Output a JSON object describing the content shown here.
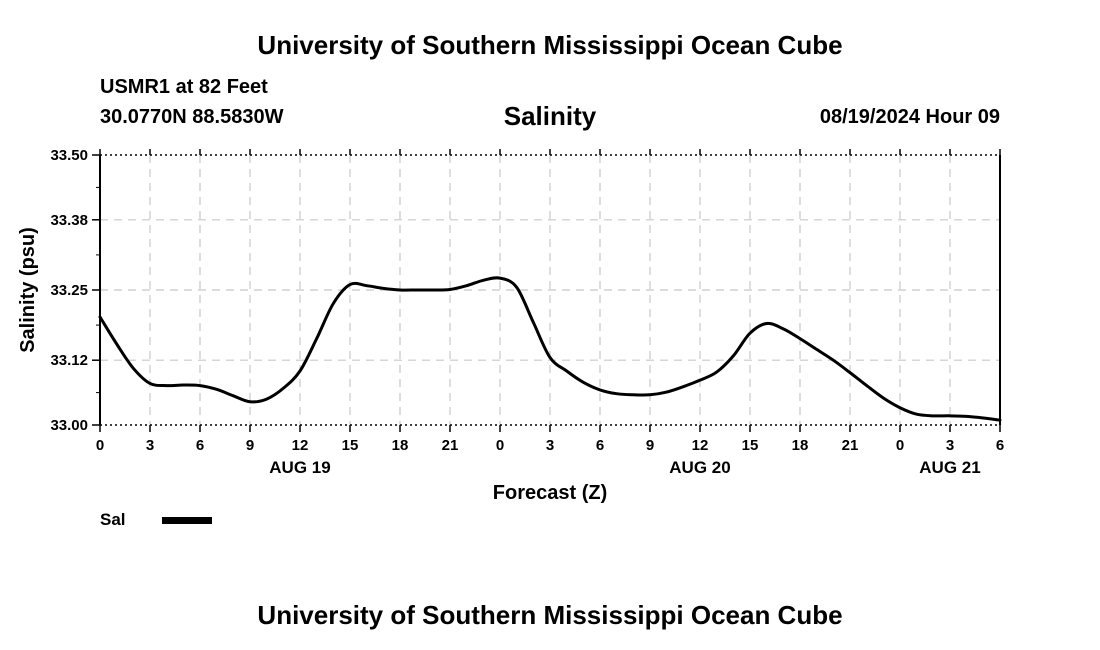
{
  "header": {
    "title": "University of Southern Mississippi Ocean Cube",
    "station": "USMR1 at 82 Feet",
    "coords": "30.0770N  88.5830W",
    "timestamp": "08/19/2024 Hour 09"
  },
  "footer": {
    "title": "University of Southern Mississippi Ocean Cube"
  },
  "legend": {
    "label": "Sal"
  },
  "chart_data": {
    "type": "line",
    "title": "Salinity",
    "xlabel": "Forecast (Z)",
    "ylabel": "Salinity (psu)",
    "ylim": [
      33.0,
      33.5
    ],
    "xlim": [
      0,
      54
    ],
    "yticks": [
      33.0,
      33.12,
      33.25,
      33.38,
      33.5
    ],
    "ytick_labels": [
      "33.00",
      "33.12",
      "33.25",
      "33.38",
      "33.50"
    ],
    "xticks": [
      0,
      3,
      6,
      9,
      12,
      15,
      18,
      21,
      24,
      27,
      30,
      33,
      36,
      39,
      42,
      45,
      48,
      51,
      54
    ],
    "xtick_labels": [
      "0",
      "3",
      "6",
      "9",
      "12",
      "15",
      "18",
      "21",
      "0",
      "3",
      "6",
      "9",
      "12",
      "15",
      "18",
      "21",
      "0",
      "3",
      "6"
    ],
    "date_labels": [
      {
        "hour": 12,
        "label": "AUG 19"
      },
      {
        "hour": 36,
        "label": "AUG 20"
      },
      {
        "hour": 51,
        "label": "AUG 21"
      }
    ],
    "grid": true,
    "series": [
      {
        "name": "Sal",
        "x": [
          0,
          1,
          2,
          3,
          4,
          5,
          6,
          7,
          8,
          9,
          10,
          11,
          12,
          13,
          14,
          15,
          16,
          17,
          18,
          19,
          20,
          21,
          22,
          23,
          24,
          25,
          26,
          27,
          28,
          29,
          30,
          31,
          32,
          33,
          34,
          35,
          36,
          37,
          38,
          39,
          40,
          41,
          42,
          43,
          44,
          45,
          46,
          47,
          48,
          49,
          50,
          51,
          52,
          53,
          54
        ],
        "values": [
          33.2,
          33.15,
          33.105,
          33.077,
          33.073,
          33.074,
          33.073,
          33.066,
          33.054,
          33.043,
          33.048,
          33.068,
          33.1,
          33.16,
          33.225,
          33.26,
          33.258,
          33.253,
          33.25,
          33.25,
          33.25,
          33.251,
          33.258,
          33.268,
          33.272,
          33.255,
          33.19,
          33.125,
          33.1,
          33.079,
          33.065,
          33.058,
          33.056,
          33.056,
          33.061,
          33.071,
          33.083,
          33.098,
          33.128,
          33.17,
          33.188,
          33.178,
          33.16,
          33.14,
          33.12,
          33.097,
          33.073,
          33.05,
          33.032,
          33.02,
          33.017,
          33.017,
          33.016,
          33.013,
          33.009
        ]
      }
    ]
  }
}
